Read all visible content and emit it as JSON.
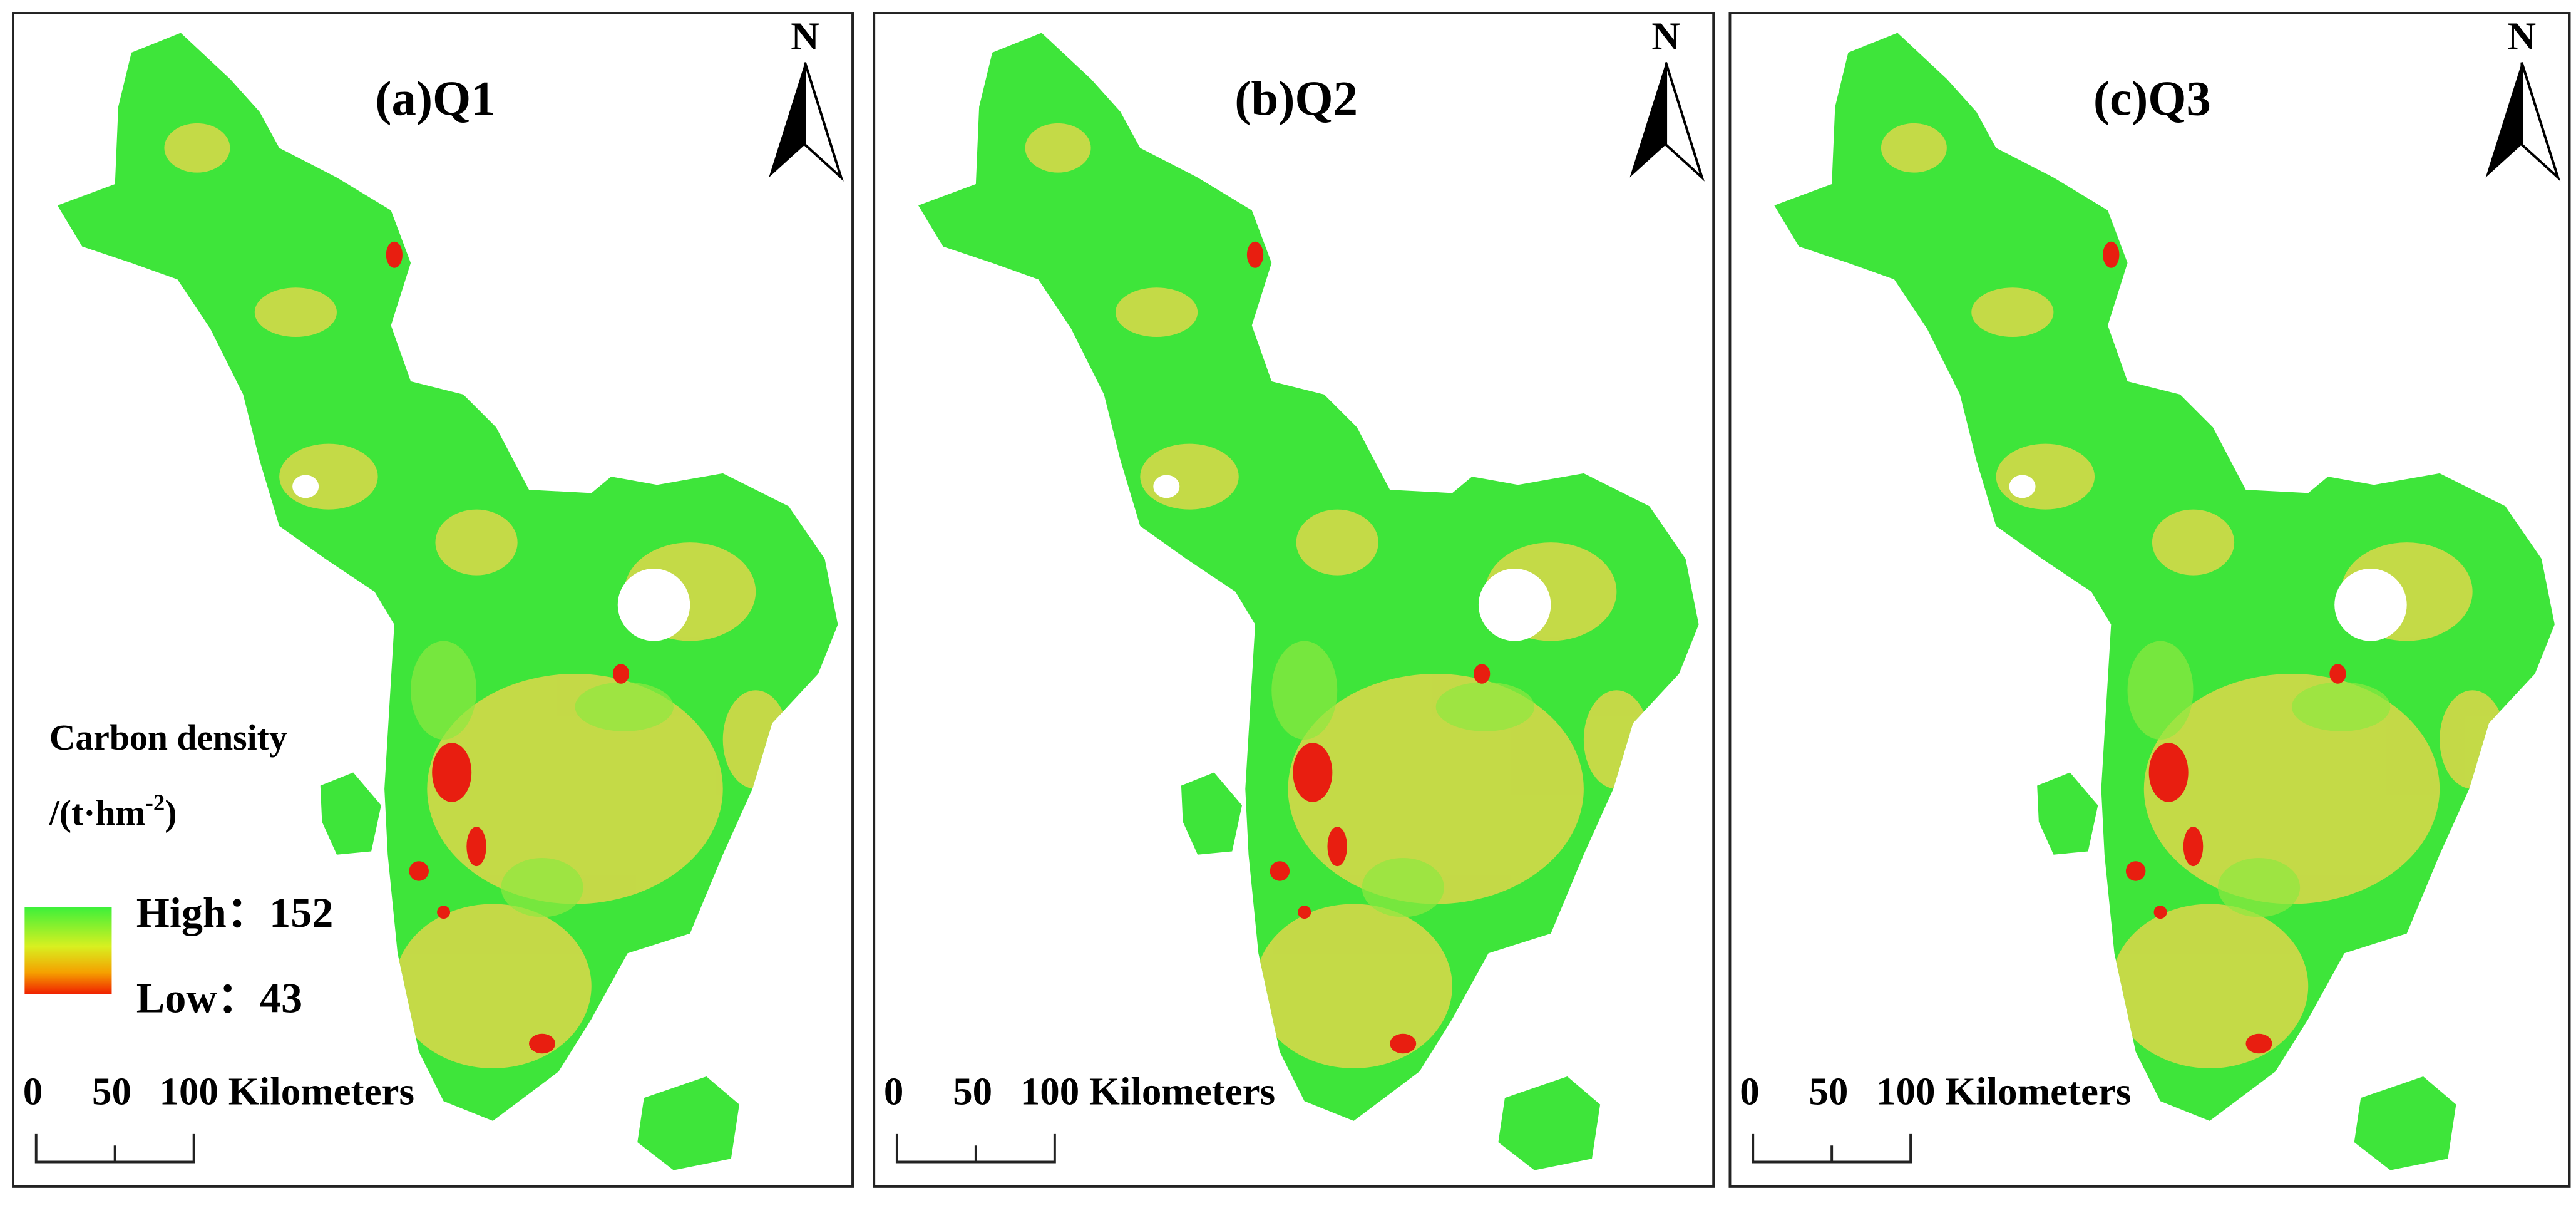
{
  "panels": [
    {
      "title": "(a)Q1",
      "north": "N",
      "scale": {
        "start": "0",
        "mid": "50",
        "end": "100 Kilometers"
      }
    },
    {
      "title": "(b)Q2",
      "north": "N",
      "scale": {
        "start": "0",
        "mid": "50",
        "end": "100 Kilometers"
      }
    },
    {
      "title": "(c)Q3",
      "north": "N",
      "scale": {
        "start": "0",
        "mid": "50",
        "end": "100 Kilometers"
      }
    }
  ],
  "legend": {
    "title": "Carbon density",
    "unit_prefix": "/(t·hm",
    "unit_sup": "-2",
    "unit_suffix": ")",
    "high": "High：152",
    "low": "Low：43"
  }
}
